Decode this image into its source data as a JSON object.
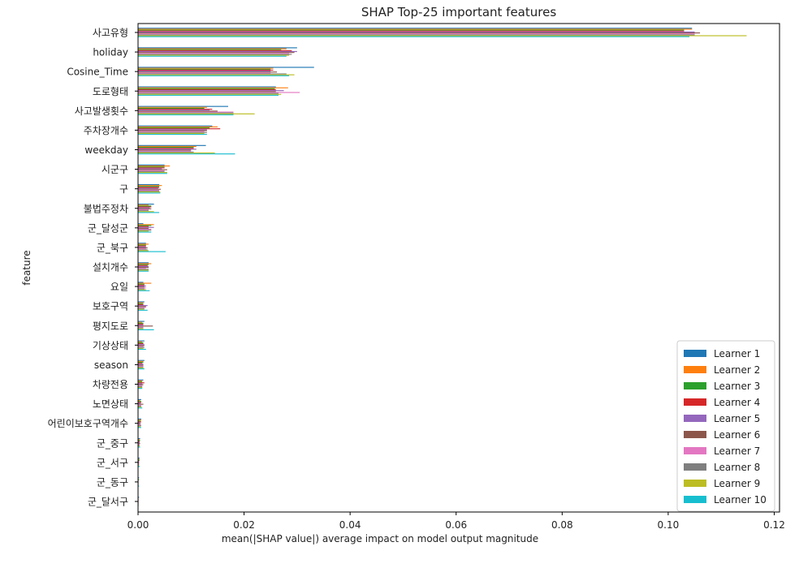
{
  "chart_data": {
    "type": "bar",
    "orientation": "horizontal",
    "title": "SHAP Top-25 important features",
    "xlabel": "mean(|SHAP value|) average impact on model output magnitude",
    "ylabel": "feature",
    "xlim": [
      0,
      0.121
    ],
    "xticks": [
      0.0,
      0.02,
      0.04,
      0.06,
      0.08,
      0.1,
      0.12
    ],
    "xtick_labels": [
      "0.00",
      "0.02",
      "0.04",
      "0.06",
      "0.08",
      "0.10",
      "0.12"
    ],
    "legend_position": "bottom-right",
    "categories": [
      "사고유형",
      "holiday",
      "Cosine_Time",
      "도로형태",
      "사고발생횟수",
      "주차장개수",
      "weekday",
      "시군구",
      "구",
      "불법주정차",
      "군_달성군",
      "군_북구",
      "설치개수",
      "요일",
      "보호구역",
      "평지도로",
      "기상상태",
      "season",
      "차량전용",
      "노면상태",
      "어린이보호구역개수",
      "군_중구",
      "군_서구",
      "군_동구",
      "군_달서구"
    ],
    "series": [
      {
        "name": "Learner 1",
        "color": "#1f77b4",
        "values": [
          0.1045,
          0.03,
          0.0332,
          0.026,
          0.017,
          0.014,
          0.0128,
          0.005,
          0.004,
          0.003,
          0.001,
          0.0015,
          0.002,
          0.001,
          0.0012,
          0.0012,
          0.0012,
          0.0012,
          0.001,
          0.0006,
          0.0006,
          0.0004,
          0.0003,
          0.0002,
          0.0002
        ]
      },
      {
        "name": "Learner 2",
        "color": "#ff7f0e",
        "values": [
          0.1045,
          0.028,
          0.0255,
          0.0283,
          0.013,
          0.015,
          0.011,
          0.006,
          0.0045,
          0.002,
          0.003,
          0.002,
          0.0025,
          0.0025,
          0.001,
          0.0008,
          0.0008,
          0.001,
          0.0008,
          0.0004,
          0.0006,
          0.0003,
          0.0002,
          0.0001,
          0.0001
        ]
      },
      {
        "name": "Learner 3",
        "color": "#2ca02c",
        "values": [
          0.103,
          0.027,
          0.025,
          0.0258,
          0.0125,
          0.0135,
          0.0105,
          0.005,
          0.004,
          0.0025,
          0.0025,
          0.0015,
          0.002,
          0.0012,
          0.001,
          0.001,
          0.001,
          0.001,
          0.0008,
          0.0006,
          0.0005,
          0.0004,
          0.0003,
          0.0002,
          0.0001
        ]
      },
      {
        "name": "Learner 4",
        "color": "#d62728",
        "values": [
          0.103,
          0.029,
          0.0255,
          0.026,
          0.014,
          0.0155,
          0.0105,
          0.005,
          0.004,
          0.0025,
          0.002,
          0.0015,
          0.0018,
          0.0012,
          0.001,
          0.001,
          0.001,
          0.0008,
          0.0012,
          0.0006,
          0.0006,
          0.0003,
          0.0002,
          0.0001,
          0.0001
        ]
      },
      {
        "name": "Learner 5",
        "color": "#9467bd",
        "values": [
          0.105,
          0.03,
          0.025,
          0.0275,
          0.0135,
          0.013,
          0.011,
          0.0045,
          0.0038,
          0.0022,
          0.003,
          0.0015,
          0.002,
          0.0015,
          0.0018,
          0.001,
          0.0012,
          0.001,
          0.0008,
          0.0005,
          0.0004,
          0.0003,
          0.0002,
          0.0001,
          0.0001
        ]
      },
      {
        "name": "Learner 6",
        "color": "#8c564b",
        "values": [
          0.106,
          0.0295,
          0.0262,
          0.026,
          0.015,
          0.013,
          0.01,
          0.0055,
          0.0043,
          0.0025,
          0.002,
          0.0018,
          0.002,
          0.0012,
          0.0015,
          0.0028,
          0.0012,
          0.001,
          0.001,
          0.001,
          0.0005,
          0.0004,
          0.0002,
          0.0001,
          0.0001
        ]
      },
      {
        "name": "Learner 7",
        "color": "#e377c2",
        "values": [
          0.105,
          0.0285,
          0.025,
          0.0305,
          0.018,
          0.0125,
          0.01,
          0.005,
          0.004,
          0.002,
          0.0025,
          0.0015,
          0.0015,
          0.0015,
          0.0015,
          0.001,
          0.001,
          0.001,
          0.0008,
          0.0006,
          0.0005,
          0.0003,
          0.0002,
          0.0001,
          0.0001
        ]
      },
      {
        "name": "Learner 8",
        "color": "#7f7f7f",
        "values": [
          0.105,
          0.029,
          0.028,
          0.0265,
          0.018,
          0.013,
          0.0105,
          0.005,
          0.004,
          0.002,
          0.0025,
          0.0018,
          0.002,
          0.0012,
          0.0012,
          0.001,
          0.0012,
          0.001,
          0.0008,
          0.0006,
          0.0006,
          0.0003,
          0.0002,
          0.0001,
          0.0001
        ]
      },
      {
        "name": "Learner 9",
        "color": "#bcbd22",
        "values": [
          0.1148,
          0.0285,
          0.0295,
          0.027,
          0.022,
          0.0125,
          0.0145,
          0.0055,
          0.0042,
          0.003,
          0.002,
          0.002,
          0.002,
          0.0015,
          0.0012,
          0.001,
          0.001,
          0.001,
          0.0008,
          0.0006,
          0.0005,
          0.0003,
          0.0002,
          0.0001,
          0.0001
        ]
      },
      {
        "name": "Learner 10",
        "color": "#17becf",
        "values": [
          0.104,
          0.028,
          0.0285,
          0.0265,
          0.018,
          0.013,
          0.0183,
          0.0055,
          0.0042,
          0.004,
          0.0025,
          0.0052,
          0.002,
          0.0022,
          0.0018,
          0.003,
          0.0015,
          0.0012,
          0.0008,
          0.0008,
          0.0006,
          0.0004,
          0.0003,
          0.0002,
          0.0001
        ]
      }
    ]
  }
}
